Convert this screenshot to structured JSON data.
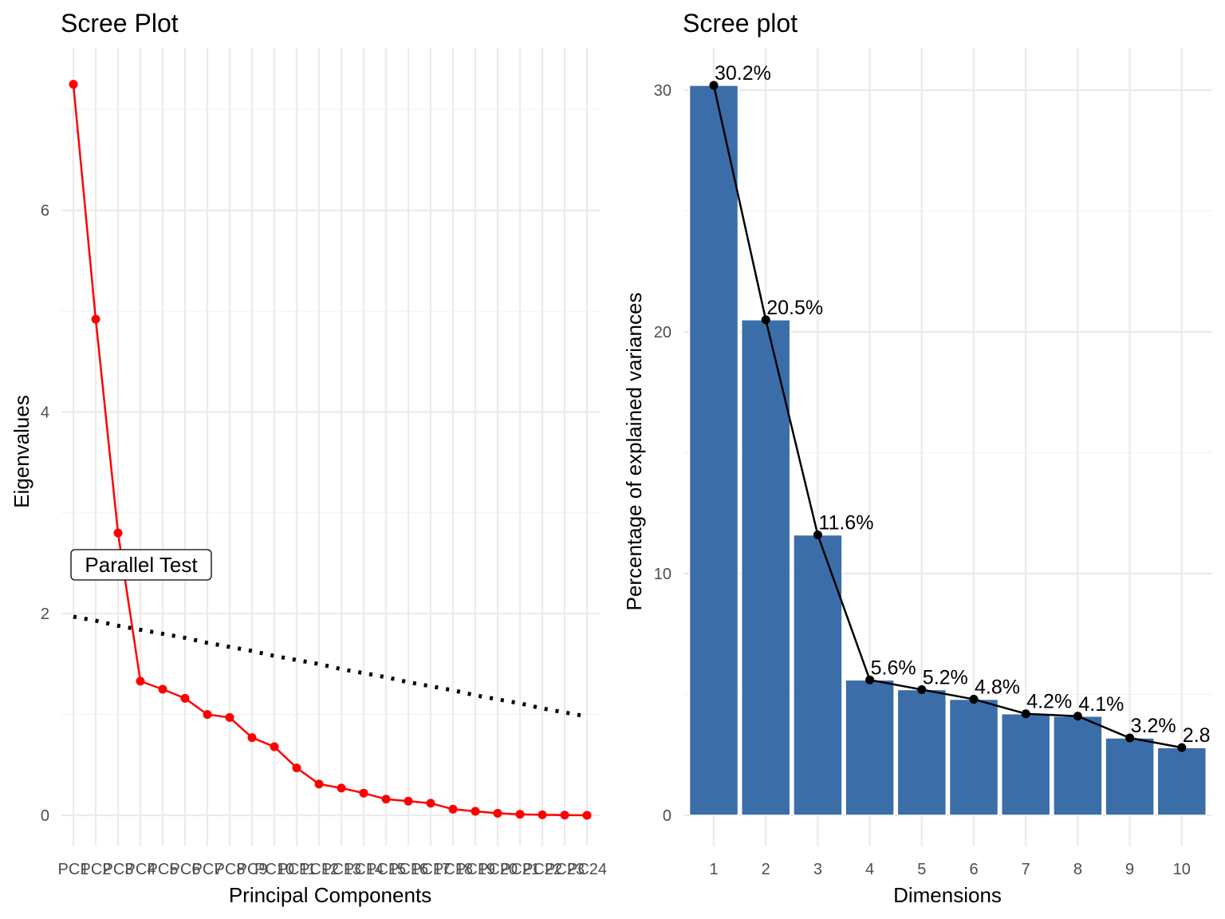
{
  "chart_data": [
    {
      "type": "line",
      "title": "Scree Plot",
      "xlabel": "Principal Components",
      "ylabel": "Eigenvalues",
      "ylim": [
        -0.3,
        7.6
      ],
      "yticks": [
        0,
        2,
        4,
        6
      ],
      "grid": true,
      "categories": [
        "PC1",
        "PC2",
        "PC3",
        "PC4",
        "PC5",
        "PC6",
        "PC7",
        "PC8",
        "PC9",
        "PC10",
        "PC11",
        "PC12",
        "PC13",
        "PC14",
        "PC15",
        "PC16",
        "PC17",
        "PC18",
        "PC19",
        "PC20",
        "PC21",
        "PC22",
        "PC23",
        "PC24"
      ],
      "series": [
        {
          "values": [
            7.25,
            4.92,
            2.8,
            1.33,
            1.25,
            1.16,
            1.0,
            0.97,
            0.77,
            0.68,
            0.47,
            0.31,
            0.27,
            0.22,
            0.16,
            0.14,
            0.12,
            0.06,
            0.04,
            0.02,
            0.01,
            0.005,
            0.002,
            0.0
          ],
          "color": "#ff0000",
          "style": "solid-with-points"
        },
        {
          "values": [
            1.97,
            1.93,
            1.88,
            1.84,
            1.8,
            1.76,
            1.71,
            1.67,
            1.63,
            1.58,
            1.54,
            1.5,
            1.45,
            1.41,
            1.37,
            1.32,
            1.28,
            1.24,
            1.19,
            1.15,
            1.11,
            1.06,
            1.02,
            0.98
          ],
          "color": "#000000",
          "style": "dotted"
        }
      ],
      "annotations": [
        {
          "text": "Parallel Test",
          "x": "PC4",
          "y": 2.5
        }
      ]
    },
    {
      "type": "bar",
      "title": "Scree plot",
      "xlabel": "Dimensions",
      "ylabel": "Percentage of explained variances",
      "ylim": [
        0,
        31
      ],
      "yticks": [
        0,
        10,
        20,
        30
      ],
      "grid": true,
      "categories": [
        "1",
        "2",
        "3",
        "4",
        "5",
        "6",
        "7",
        "8",
        "9",
        "10"
      ],
      "values": [
        30.2,
        20.5,
        11.6,
        5.6,
        5.2,
        4.8,
        4.2,
        4.1,
        3.2,
        2.8
      ],
      "labels": [
        "30.2%",
        "20.5%",
        "11.6%",
        "5.6%",
        "5.2%",
        "4.8%",
        "4.2%",
        "4.1%",
        "3.2%",
        "2.8"
      ],
      "bar_color": "#3b6ea8",
      "line_color": "#000000"
    }
  ]
}
